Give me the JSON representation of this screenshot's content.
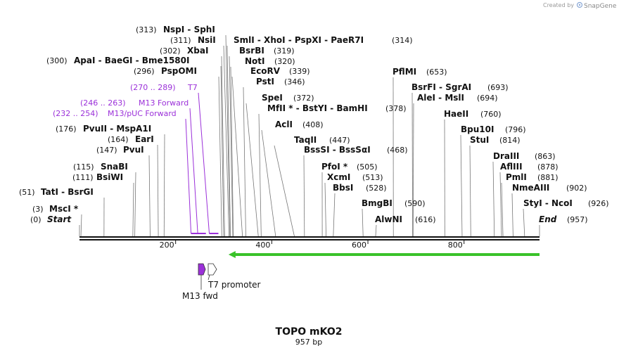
{
  "credit": {
    "prefix": "Created by",
    "brand": "SnapGene"
  },
  "construct": {
    "name": "TOPO mKO2",
    "length_label": "957 bp",
    "length": 957
  },
  "sites": [
    {
      "name": "Start",
      "pos_label": "(0)",
      "pos": 0,
      "italic": true
    },
    {
      "name": "MscI *",
      "pos_label": "(3)",
      "pos": 3
    },
    {
      "name": "TatI  - BsrGI",
      "pos_label": "(51)",
      "pos": 51
    },
    {
      "name": "BsiWI",
      "pos_label": "(111)",
      "pos": 111
    },
    {
      "name": "SnaBI",
      "pos_label": "(115)",
      "pos": 115
    },
    {
      "name": "PvuI",
      "pos_label": "(147)",
      "pos": 147
    },
    {
      "name": "EarI",
      "pos_label": "(164)",
      "pos": 164
    },
    {
      "name": "PvuII  - MspA1I",
      "pos_label": "(176)",
      "pos": 176
    },
    {
      "name": "PspOMI",
      "pos_label": "(296)",
      "pos": 296
    },
    {
      "name": "ApaI  - BaeGI  - Bme1580I",
      "pos_label": "(300)",
      "pos": 300
    },
    {
      "name": "XbaI",
      "pos_label": "(302)",
      "pos": 302
    },
    {
      "name": "NsiI",
      "pos_label": "(311)",
      "pos": 311
    },
    {
      "name": "NspI  - SphI",
      "pos_label": "(313)",
      "pos": 313
    },
    {
      "name": "SmlI  - XhoI  - PspXI  - PaeR7I",
      "pos_label": "(314)",
      "pos": 314
    },
    {
      "name": "BsrBI",
      "pos_label": "(319)",
      "pos": 319
    },
    {
      "name": "NotI",
      "pos_label": "(320)",
      "pos": 320
    },
    {
      "name": "EcoRV",
      "pos_label": "(339)",
      "pos": 339
    },
    {
      "name": "PstI",
      "pos_label": "(346)",
      "pos": 346
    },
    {
      "name": "SpeI",
      "pos_label": "(372)",
      "pos": 372
    },
    {
      "name": "MfII *  - BstYI  - BamHI",
      "pos_label": "(378)",
      "pos": 378
    },
    {
      "name": "AclI",
      "pos_label": "(408)",
      "pos": 408
    },
    {
      "name": "TaqII",
      "pos_label": "(447)",
      "pos": 447
    },
    {
      "name": "BssSI  - BssSαI",
      "pos_label": "(468)",
      "pos": 468
    },
    {
      "name": "PfoI *",
      "pos_label": "(505)",
      "pos": 505
    },
    {
      "name": "XcmI",
      "pos_label": "(513)",
      "pos": 513
    },
    {
      "name": "BbsI",
      "pos_label": "(528)",
      "pos": 528
    },
    {
      "name": "BmgBI",
      "pos_label": "(590)",
      "pos": 590
    },
    {
      "name": "AlwNI",
      "pos_label": "(616)",
      "pos": 616
    },
    {
      "name": "PflMI",
      "pos_label": "(653)",
      "pos": 653
    },
    {
      "name": "BsrFI  - SgrAI",
      "pos_label": "(693)",
      "pos": 693
    },
    {
      "name": "AleI  - MslI",
      "pos_label": "(694)",
      "pos": 694
    },
    {
      "name": "HaeII",
      "pos_label": "(760)",
      "pos": 760
    },
    {
      "name": "Bpu10I",
      "pos_label": "(796)",
      "pos": 796
    },
    {
      "name": "StuI",
      "pos_label": "(814)",
      "pos": 814
    },
    {
      "name": "DraIII",
      "pos_label": "(863)",
      "pos": 863
    },
    {
      "name": "AflIII",
      "pos_label": "(878)",
      "pos": 878
    },
    {
      "name": "PmlI",
      "pos_label": "(881)",
      "pos": 881
    },
    {
      "name": "NmeAIII",
      "pos_label": "(902)",
      "pos": 902
    },
    {
      "name": "StyI  - NcoI",
      "pos_label": "(926)",
      "pos": 926
    },
    {
      "name": "End",
      "pos_label": "(957)",
      "pos": 957,
      "italic": true
    }
  ],
  "primers": [
    {
      "name": "T7",
      "range_label": "(270 .. 289)",
      "start": 270,
      "end": 289
    },
    {
      "name": "M13 Forward",
      "range_label": "(246 .. 263)",
      "start": 246,
      "end": 263
    },
    {
      "name": "M13/pUC Forward",
      "range_label": "(232 .. 254)",
      "start": 232,
      "end": 254
    }
  ],
  "ticks": [
    "200",
    "400",
    "600",
    "800"
  ],
  "features": [
    {
      "name": "T7 promoter",
      "start": 270,
      "end": 288,
      "color": "#ffffff"
    },
    {
      "name": "M13 fwd",
      "start": 246,
      "end": 263,
      "color": "#9b30d9"
    }
  ],
  "orf": {
    "start": 310,
    "end": 957,
    "color": "#39c229"
  },
  "colors": {
    "primer": "#9b30d9",
    "orf": "#39c229",
    "backbone": "#111111"
  }
}
